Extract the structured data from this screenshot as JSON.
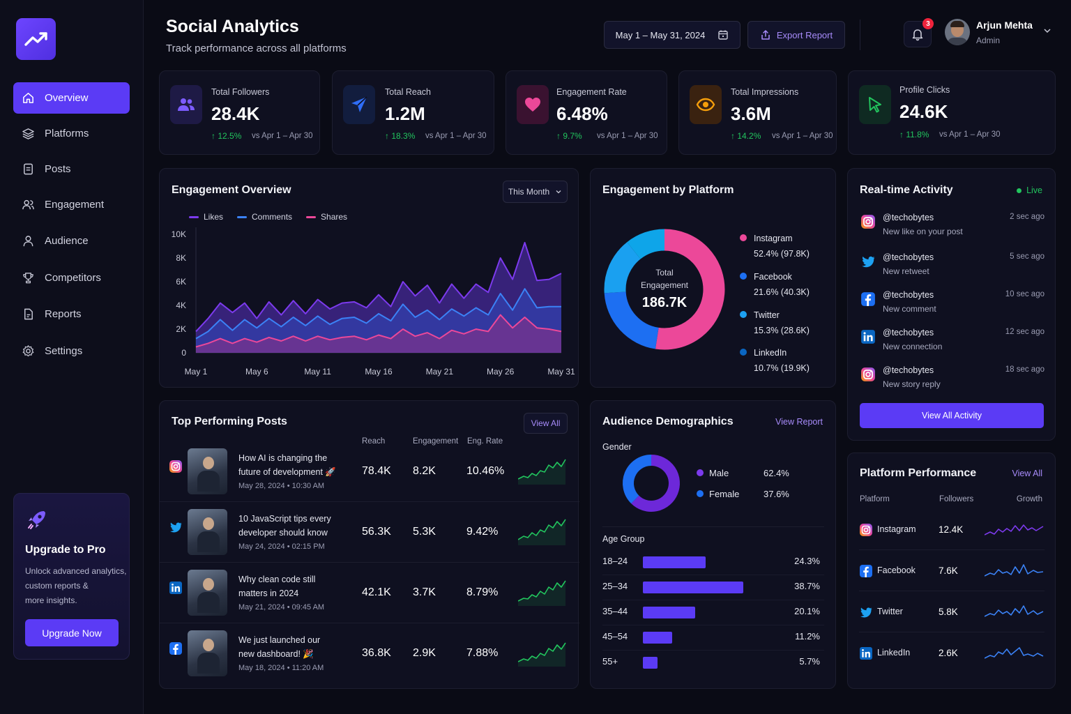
{
  "colors": {
    "accent": "#5b3bf5",
    "likes": "#7c3aed",
    "comments": "#3b82f6",
    "shares": "#ec4899",
    "instagram": "#ec4899",
    "facebook": "#1d6ff2",
    "twitter": "#1da1f2",
    "linkedin": "#0a66c2",
    "positive": "#22c55e"
  },
  "header": {
    "title": "Social Analytics",
    "subtitle": "Track performance across all platforms",
    "date_range": "May 1 – May 31, 2024",
    "export_label": "Export Report",
    "notification_count": "3",
    "user_name": "Arjun Mehta",
    "user_role": "Admin"
  },
  "sidebar": {
    "items": [
      {
        "label": "Overview",
        "icon": "home-icon"
      },
      {
        "label": "Platforms",
        "icon": "layers-icon"
      },
      {
        "label": "Posts",
        "icon": "document-icon"
      },
      {
        "label": "Engagement",
        "icon": "users-icon"
      },
      {
        "label": "Audience",
        "icon": "user-icon"
      },
      {
        "label": "Competitors",
        "icon": "trophy-icon"
      },
      {
        "label": "Reports",
        "icon": "report-icon"
      },
      {
        "label": "Settings",
        "icon": "gear-icon"
      }
    ],
    "upgrade": {
      "title": "Upgrade to Pro",
      "text_line1": "Unlock advanced analytics,",
      "text_line2": "custom reports &",
      "text_line3": "more insights.",
      "button": "Upgrade Now"
    }
  },
  "stats": [
    {
      "label": "Total Followers",
      "value": "28.4K",
      "delta": "↑ 12.5%",
      "vs": "vs Apr 1 – Apr 30",
      "icon": "users-icon"
    },
    {
      "label": "Total Reach",
      "value": "1.2M",
      "delta": "↑ 18.3%",
      "vs": "vs Apr 1 – Apr 30",
      "icon": "send-icon"
    },
    {
      "label": "Engagement Rate",
      "value": "6.48%",
      "delta": "↑ 9.7%",
      "vs": "vs Apr 1 – Apr 30",
      "icon": "heart-icon"
    },
    {
      "label": "Total Impressions",
      "value": "3.6M",
      "delta": "↑ 14.2%",
      "vs": "vs Apr 1 – Apr 30",
      "icon": "eye-icon"
    },
    {
      "label": "Profile Clicks",
      "value": "24.6K",
      "delta": "↑ 11.8%",
      "vs": "vs Apr 1 – Apr 30",
      "icon": "cursor-icon"
    }
  ],
  "engagement_overview": {
    "title": "Engagement Overview",
    "period": "This Month"
  },
  "chart_data": [
    {
      "type": "area",
      "x": [
        "May 1",
        "May 2",
        "May 3",
        "May 4",
        "May 5",
        "May 6",
        "May 7",
        "May 8",
        "May 9",
        "May 10",
        "May 11",
        "May 12",
        "May 13",
        "May 14",
        "May 15",
        "May 16",
        "May 17",
        "May 18",
        "May 19",
        "May 20",
        "May 21",
        "May 22",
        "May 23",
        "May 24",
        "May 25",
        "May 26",
        "May 27",
        "May 28",
        "May 29",
        "May 30",
        "May 31"
      ],
      "xticks": [
        "May 1",
        "May 6",
        "May 11",
        "May 16",
        "May 21",
        "May 26",
        "May 31"
      ],
      "yticks": [
        "10K",
        "8K",
        "6K",
        "4K",
        "2K",
        "0"
      ],
      "ylim": [
        0,
        10000
      ],
      "series": [
        {
          "name": "Likes",
          "values": [
            1800,
            2900,
            4200,
            3400,
            4200,
            2900,
            4300,
            3200,
            4400,
            3300,
            4500,
            3700,
            4200,
            4300,
            3800,
            4900,
            3900,
            6000,
            4800,
            5700,
            4200,
            5800,
            4600,
            5800,
            5100,
            8000,
            6200,
            9300,
            6100,
            6200,
            6700
          ]
        },
        {
          "name": "Comments",
          "values": [
            1200,
            1800,
            2800,
            1900,
            2800,
            2100,
            2900,
            2200,
            3000,
            2300,
            3100,
            2400,
            2900,
            3000,
            2500,
            3300,
            2700,
            4100,
            3000,
            3600,
            2800,
            3700,
            3100,
            3800,
            3200,
            5000,
            3600,
            5400,
            3800,
            3900,
            3900
          ]
        },
        {
          "name": "Shares",
          "values": [
            500,
            800,
            1200,
            800,
            1200,
            900,
            1300,
            1000,
            1400,
            1000,
            1400,
            1100,
            1300,
            1400,
            1100,
            1500,
            1200,
            2000,
            1400,
            1700,
            1200,
            1900,
            1600,
            2000,
            1800,
            3200,
            2100,
            3000,
            2100,
            2000,
            1800
          ]
        }
      ],
      "legend": "top-left",
      "grid": false
    },
    {
      "type": "pie",
      "title": "Engagement by Platform",
      "center_label": "Total Engagement",
      "center_value": "186.7K",
      "categories": [
        "Instagram",
        "Facebook",
        "Twitter",
        "LinkedIn"
      ],
      "values": [
        97.8,
        40.3,
        28.6,
        19.9
      ],
      "labels": [
        "52.4% (97.8K)",
        "21.6% (40.3K)",
        "15.3% (28.6K)",
        "10.7% (19.9K)"
      ]
    },
    {
      "type": "pie",
      "title": "Gender",
      "categories": [
        "Male",
        "Female"
      ],
      "values": [
        62.4,
        37.6
      ],
      "labels": [
        "62.4%",
        "37.6%"
      ]
    },
    {
      "type": "bar",
      "title": "Age Group",
      "categories": [
        "18–24",
        "25–34",
        "35–44",
        "45–54",
        "55+"
      ],
      "values": [
        24.3,
        38.7,
        20.1,
        11.2,
        5.7
      ],
      "labels": [
        "24.3%",
        "38.7%",
        "20.1%",
        "11.2%",
        "5.7%"
      ]
    }
  ],
  "platform_engagement": {
    "title": "Engagement by Platform"
  },
  "realtime": {
    "title": "Real-time Activity",
    "live": "Live",
    "button": "View All Activity",
    "items": [
      {
        "platform": "instagram",
        "user": "@techobytes",
        "msg": "New like on your post",
        "time": "2 sec ago"
      },
      {
        "platform": "twitter",
        "user": "@techobytes",
        "msg": "New retweet",
        "time": "5 sec ago"
      },
      {
        "platform": "facebook",
        "user": "@techobytes",
        "msg": "New comment",
        "time": "10 sec ago"
      },
      {
        "platform": "linkedin",
        "user": "@techobytes",
        "msg": "New connection",
        "time": "12 sec ago"
      },
      {
        "platform": "instagram",
        "user": "@techobytes",
        "msg": "New story reply",
        "time": "18 sec ago"
      }
    ]
  },
  "top_posts": {
    "title": "Top Performing Posts",
    "view_all": "View All",
    "col_reach": "Reach",
    "col_engagement": "Engagement",
    "col_rate": "Eng. Rate",
    "rows": [
      {
        "platform": "instagram",
        "title_l1": "How AI is changing the",
        "title_l2": "future of development 🚀",
        "date": "May 28, 2024  •  10:30 AM",
        "reach": "78.4K",
        "engagement": "8.2K",
        "rate": "10.46%"
      },
      {
        "platform": "twitter",
        "title_l1": "10 JavaScript tips every",
        "title_l2": "developer should know",
        "date": "May 24, 2024  •  02:15 PM",
        "reach": "56.3K",
        "engagement": "5.3K",
        "rate": "9.42%"
      },
      {
        "platform": "linkedin",
        "title_l1": "Why clean code still",
        "title_l2": "matters in 2024",
        "date": "May 21, 2024  •  09:45 AM",
        "reach": "42.1K",
        "engagement": "3.7K",
        "rate": "8.79%"
      },
      {
        "platform": "facebook",
        "title_l1": "We just launched our",
        "title_l2": "new dashboard! 🎉",
        "date": "May 18, 2024  •  11:20 AM",
        "reach": "36.8K",
        "engagement": "2.9K",
        "rate": "7.88%"
      }
    ]
  },
  "demographics": {
    "title": "Audience Demographics",
    "view_report": "View Report",
    "gender_title": "Gender",
    "age_title": "Age Group"
  },
  "platform_performance": {
    "title": "Platform Performance",
    "view_all": "View All",
    "col_platform": "Platform",
    "col_followers": "Followers",
    "col_growth": "Growth",
    "rows": [
      {
        "platform": "instagram",
        "name": "Instagram",
        "followers": "12.4K"
      },
      {
        "platform": "facebook",
        "name": "Facebook",
        "followers": "7.6K"
      },
      {
        "platform": "twitter",
        "name": "Twitter",
        "followers": "5.8K"
      },
      {
        "platform": "linkedin",
        "name": "LinkedIn",
        "followers": "2.6K"
      }
    ]
  }
}
